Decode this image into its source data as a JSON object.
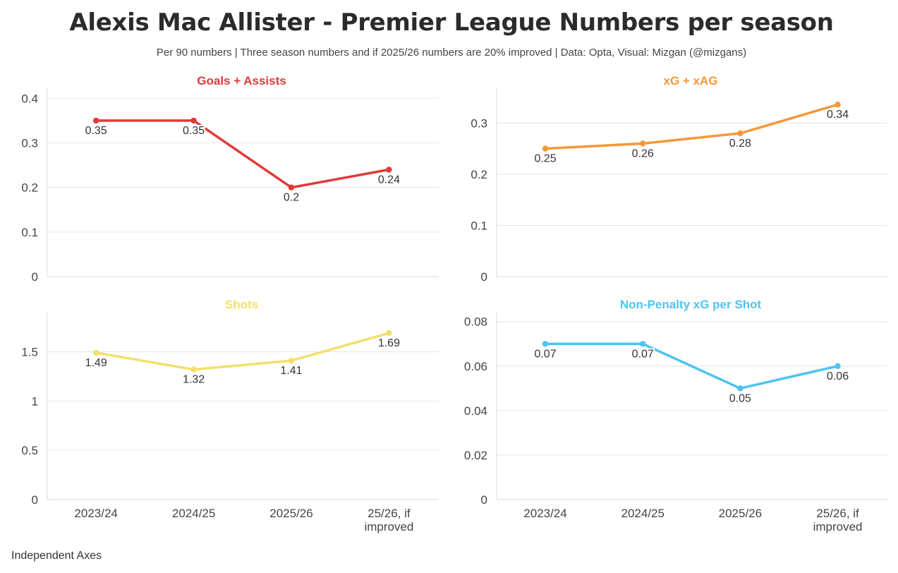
{
  "header": {
    "title": "Alexis Mac Allister - Premier League Numbers per season",
    "subtitle": "Per 90 numbers | Three season numbers and if 2025/26 numbers are 20% improved | Data: Opta, Visual: Mizgan (@mizgans)"
  },
  "footer": {
    "note": "Independent Axes"
  },
  "chart_data": [
    {
      "type": "line",
      "title": "Goals + Assists",
      "color": "#e03a3a",
      "categories": [
        "2023/24",
        "2024/25",
        "2025/26",
        "25/26, if improved"
      ],
      "values": [
        0.35,
        0.35,
        0.2,
        0.24
      ],
      "data_labels": [
        "0.35",
        "0.35",
        "0.2",
        "0.24"
      ],
      "yticks": [
        0,
        0.1,
        0.2,
        0.3,
        0.4
      ],
      "ytick_labels": [
        "0",
        "0.1",
        "0.2",
        "0.3",
        "0.4"
      ],
      "ylim": [
        0,
        0.41
      ],
      "grid": true,
      "xlabel": "",
      "ylabel": ""
    },
    {
      "type": "line",
      "title": "xG + xAG",
      "color": "#f5983a",
      "categories": [
        "2023/24",
        "2024/25",
        "2025/26",
        "25/26, if improved"
      ],
      "values": [
        0.25,
        0.26,
        0.28,
        0.336
      ],
      "data_labels": [
        "0.25",
        "0.26",
        "0.28",
        "0.34"
      ],
      "yticks": [
        0,
        0.1,
        0.2,
        0.3
      ],
      "ytick_labels": [
        "0",
        "0.1",
        "0.2",
        "0.3"
      ],
      "ylim": [
        0,
        0.357
      ],
      "grid": true,
      "xlabel": "",
      "ylabel": ""
    },
    {
      "type": "line",
      "title": "Shots",
      "color": "#f4df6b",
      "categories": [
        "2023/24",
        "2024/25",
        "2025/26",
        "25/26, if improved"
      ],
      "values": [
        1.49,
        1.32,
        1.41,
        1.69
      ],
      "data_labels": [
        "1.49",
        "1.32",
        "1.41",
        "1.69"
      ],
      "yticks": [
        0,
        0.5,
        1,
        1.5
      ],
      "ytick_labels": [
        "0",
        "0.5",
        "1",
        "1.5"
      ],
      "ylim": [
        0,
        1.84
      ],
      "grid": true,
      "xlabel": "",
      "ylabel": ""
    },
    {
      "type": "line",
      "title": "Non-Penalty xG per Shot",
      "color": "#4fc3f3",
      "categories": [
        "2023/24",
        "2024/25",
        "2025/26",
        "25/26, if improved"
      ],
      "values": [
        0.07,
        0.07,
        0.05,
        0.06
      ],
      "data_labels": [
        "0.07",
        "0.07",
        "0.05",
        "0.06"
      ],
      "yticks": [
        0,
        0.02,
        0.04,
        0.06,
        0.08
      ],
      "ytick_labels": [
        "0",
        "0.02",
        "0.04",
        "0.06",
        "0.08"
      ],
      "ylim": [
        0,
        0.0815
      ],
      "grid": true,
      "xlabel": "",
      "ylabel": ""
    }
  ]
}
